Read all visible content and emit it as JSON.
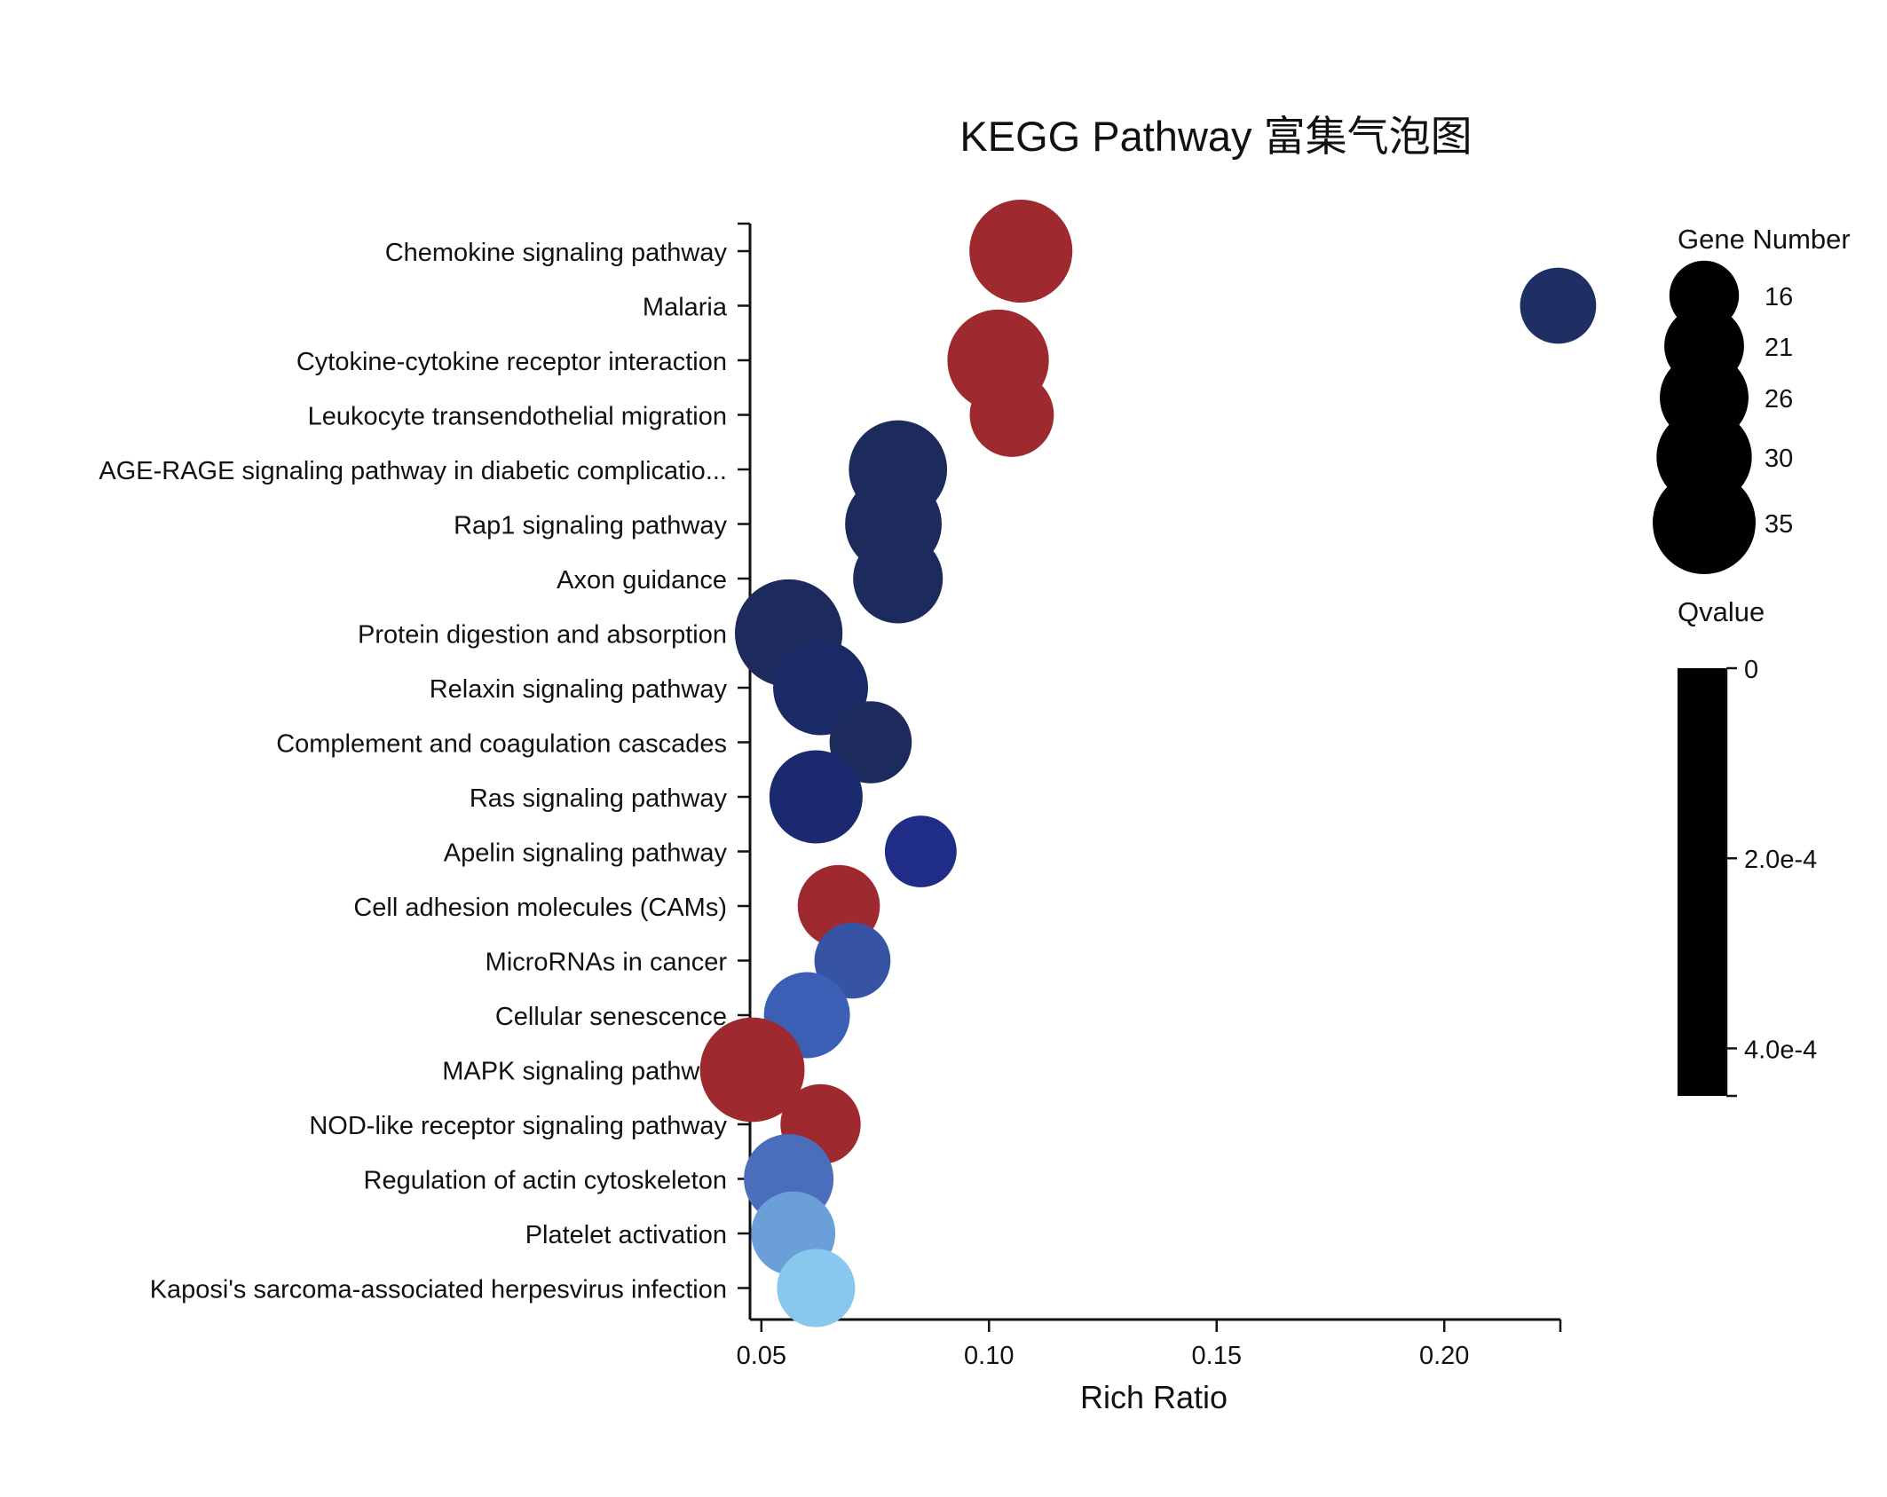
{
  "chart_data": {
    "type": "scatter",
    "title": "KEGG Pathway 富集气泡图",
    "xlabel": "Rich Ratio",
    "ylabel": "",
    "xlim": [
      0.0475,
      0.2255
    ],
    "xticks": [
      0.05,
      0.1,
      0.15,
      0.2
    ],
    "xtick_labels": [
      "0.05",
      "0.10",
      "0.15",
      "0.20"
    ],
    "grid": false,
    "categories": [
      "Chemokine signaling pathway",
      "Malaria",
      "Cytokine-cytokine receptor interaction",
      "Leukocyte transendothelial migration",
      "AGE-RAGE signaling pathway in diabetic complicatio...",
      "Rap1 signaling pathway",
      "Axon guidance",
      "Protein digestion and absorption",
      "Relaxin signaling pathway",
      "Complement and coagulation cascades",
      "Ras signaling pathway",
      "Apelin signaling pathway",
      "Cell adhesion molecules (CAMs)",
      "MicroRNAs in cancer",
      "Cellular senescence",
      "MAPK signaling pathway",
      "NOD-like receptor signaling pathway",
      "Regulation of actin cytoskeleton",
      "Platelet activation",
      "Kaposi's sarcoma-associated herpesvirus infection"
    ],
    "points": [
      {
        "x": 0.107,
        "gene_number": 33,
        "color": "#9e2a2f"
      },
      {
        "x": 0.225,
        "gene_number": 18,
        "color": "#1f2e63"
      },
      {
        "x": 0.102,
        "gene_number": 32,
        "color": "#9e2a2f"
      },
      {
        "x": 0.105,
        "gene_number": 22,
        "color": "#9e2a2f"
      },
      {
        "x": 0.08,
        "gene_number": 30,
        "color": "#1c2a5c"
      },
      {
        "x": 0.079,
        "gene_number": 29,
        "color": "#1c2a5c"
      },
      {
        "x": 0.08,
        "gene_number": 25,
        "color": "#1c2a5c"
      },
      {
        "x": 0.056,
        "gene_number": 36,
        "color": "#1c2a5c"
      },
      {
        "x": 0.063,
        "gene_number": 28,
        "color": "#1a2a66"
      },
      {
        "x": 0.074,
        "gene_number": 21,
        "color": "#1c2a5c"
      },
      {
        "x": 0.062,
        "gene_number": 27,
        "color": "#1b2a6e"
      },
      {
        "x": 0.085,
        "gene_number": 16,
        "color": "#1f2d86"
      },
      {
        "x": 0.067,
        "gene_number": 21,
        "color": "#9e2a2f"
      },
      {
        "x": 0.07,
        "gene_number": 18,
        "color": "#3753a4"
      },
      {
        "x": 0.06,
        "gene_number": 23,
        "color": "#3a5fb5"
      },
      {
        "x": 0.048,
        "gene_number": 34,
        "color": "#9e2a2f"
      },
      {
        "x": 0.063,
        "gene_number": 20,
        "color": "#9e2a2f"
      },
      {
        "x": 0.056,
        "gene_number": 25,
        "color": "#4a6dbc"
      },
      {
        "x": 0.057,
        "gene_number": 22,
        "color": "#6a9fd8"
      },
      {
        "x": 0.062,
        "gene_number": 19,
        "color": "#88c8ee"
      }
    ],
    "legend_size": {
      "title": "Gene Number",
      "entries": [
        {
          "value": 16,
          "label": "16"
        },
        {
          "value": 21,
          "label": "21"
        },
        {
          "value": 26,
          "label": "26"
        },
        {
          "value": 30,
          "label": "30"
        },
        {
          "value": 35,
          "label": "35"
        }
      ],
      "placement": "right"
    },
    "legend_color": {
      "title": "Qvalue",
      "ticks": [
        {
          "value": 0,
          "label": "0"
        },
        {
          "value": 0.0002,
          "label": "2.0e-4"
        },
        {
          "value": 0.0004,
          "label": "4.0e-4"
        }
      ],
      "range": [
        0,
        0.00045
      ],
      "bar_color": "#000000",
      "placement": "right"
    }
  }
}
